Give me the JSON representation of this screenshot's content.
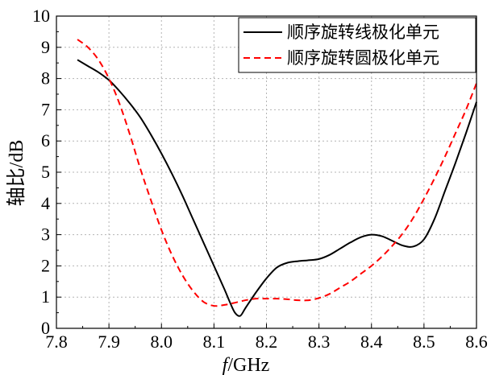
{
  "chart_data": {
    "type": "line",
    "xlabel_italic": "f",
    "xlabel_rest": "/GHz",
    "ylabel": "轴比/dB",
    "xlim": [
      7.8,
      8.6
    ],
    "ylim": [
      0,
      10
    ],
    "xticks": [
      "7.8",
      "7.9",
      "8.0",
      "8.1",
      "8.2",
      "8.3",
      "8.4",
      "8.5",
      "8.6"
    ],
    "yticks": [
      "0",
      "1",
      "2",
      "3",
      "4",
      "5",
      "6",
      "7",
      "8",
      "9",
      "10"
    ],
    "grid": true,
    "legend_position": "top-right",
    "series": [
      {
        "name": "顺序旋转线极化单元",
        "color": "#000000",
        "style": "solid",
        "x": [
          7.84,
          7.86,
          7.88,
          7.9,
          7.92,
          7.94,
          7.96,
          7.98,
          8.0,
          8.02,
          8.04,
          8.06,
          8.08,
          8.1,
          8.12,
          8.13,
          8.14,
          8.15,
          8.16,
          8.18,
          8.2,
          8.22,
          8.24,
          8.26,
          8.28,
          8.3,
          8.32,
          8.34,
          8.36,
          8.38,
          8.4,
          8.42,
          8.44,
          8.46,
          8.48,
          8.5,
          8.52,
          8.54,
          8.56,
          8.58,
          8.6
        ],
        "y": [
          8.6,
          8.4,
          8.2,
          7.95,
          7.6,
          7.2,
          6.75,
          6.2,
          5.6,
          4.95,
          4.25,
          3.5,
          2.75,
          2.0,
          1.25,
          0.85,
          0.5,
          0.4,
          0.65,
          1.15,
          1.6,
          1.95,
          2.1,
          2.15,
          2.18,
          2.22,
          2.35,
          2.55,
          2.75,
          2.92,
          3.0,
          2.95,
          2.8,
          2.65,
          2.62,
          2.85,
          3.5,
          4.4,
          5.3,
          6.25,
          7.25
        ]
      },
      {
        "name": "顺序旋转圆极化单元",
        "color": "#ff0000",
        "style": "dashed",
        "x": [
          7.84,
          7.86,
          7.88,
          7.9,
          7.92,
          7.94,
          7.96,
          7.98,
          8.0,
          8.02,
          8.04,
          8.06,
          8.08,
          8.1,
          8.12,
          8.14,
          8.16,
          8.18,
          8.2,
          8.22,
          8.24,
          8.26,
          8.28,
          8.3,
          8.32,
          8.34,
          8.36,
          8.38,
          8.4,
          8.42,
          8.44,
          8.46,
          8.48,
          8.5,
          8.52,
          8.54,
          8.56,
          8.58,
          8.6
        ],
        "y": [
          9.25,
          9.0,
          8.6,
          8.0,
          7.2,
          6.2,
          5.1,
          4.1,
          3.15,
          2.35,
          1.7,
          1.2,
          0.85,
          0.72,
          0.75,
          0.82,
          0.9,
          0.95,
          0.95,
          0.95,
          0.93,
          0.9,
          0.9,
          0.97,
          1.1,
          1.3,
          1.5,
          1.75,
          2.0,
          2.3,
          2.65,
          3.05,
          3.55,
          4.15,
          4.8,
          5.5,
          6.25,
          7.0,
          7.85
        ]
      }
    ]
  }
}
